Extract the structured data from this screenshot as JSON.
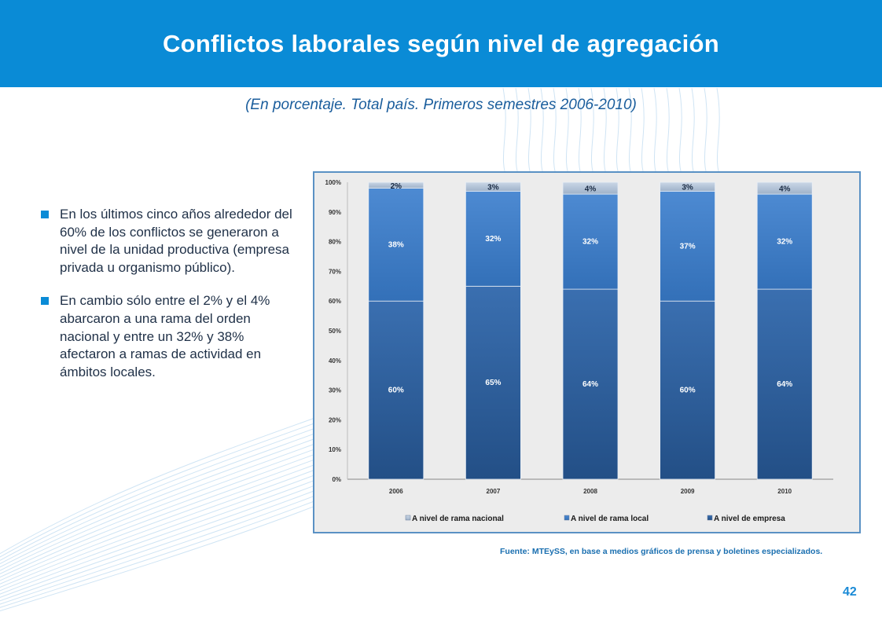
{
  "header": {
    "title": "Conflictos laborales según nivel de agregación"
  },
  "subtitle": "(En porcentaje. Total país. Primeros semestres 2006-2010)",
  "bullets": [
    {
      "text": "En los últimos cinco años alrededor del 60% de los conflictos se generaron a nivel de la unidad productiva (empresa privada u organismo público)."
    },
    {
      "text": "En cambio sólo entre el 2% y el 4% abarcaron a una rama del orden nacional y entre un 32% y 38% afectaron a ramas de actividad en ámbitos locales."
    }
  ],
  "source": "Fuente: MTEySS, en base a medios gráficos de prensa y boletines especializados.",
  "page_number": "42",
  "colors": {
    "header": "#0a8bd6",
    "empresa": "#2a5f9e",
    "rama_local": "#3e7dc8",
    "rama_nacional": "#aebfd4"
  },
  "chart_data": {
    "type": "bar",
    "stacked": true,
    "categories": [
      "2006",
      "2007",
      "2008",
      "2009",
      "2010"
    ],
    "series": [
      {
        "name": "A nivel de empresa",
        "values": [
          60,
          65,
          64,
          60,
          64
        ],
        "labels": [
          "60%",
          "65%",
          "64%",
          "60%",
          "64%"
        ],
        "color": "#2a5f9e"
      },
      {
        "name": "A nivel de rama local",
        "values": [
          38,
          32,
          32,
          37,
          32
        ],
        "labels": [
          "38%",
          "32%",
          "32%",
          "37%",
          "32%"
        ],
        "color": "#3e7dc8"
      },
      {
        "name": "A nivel de rama nacional",
        "values": [
          2,
          3,
          4,
          3,
          4
        ],
        "labels": [
          "2%",
          "3%",
          "4%",
          "3%",
          "4%"
        ],
        "color": "#aebfd4"
      }
    ],
    "legend_order": [
      "A nivel de rama nacional",
      "A nivel de rama local",
      "A nivel de empresa"
    ],
    "yticks": [
      "0%",
      "10%",
      "20%",
      "30%",
      "40%",
      "50%",
      "60%",
      "70%",
      "80%",
      "90%",
      "100%"
    ],
    "ylim": [
      0,
      100
    ],
    "legend_position": "bottom",
    "grid": false
  }
}
